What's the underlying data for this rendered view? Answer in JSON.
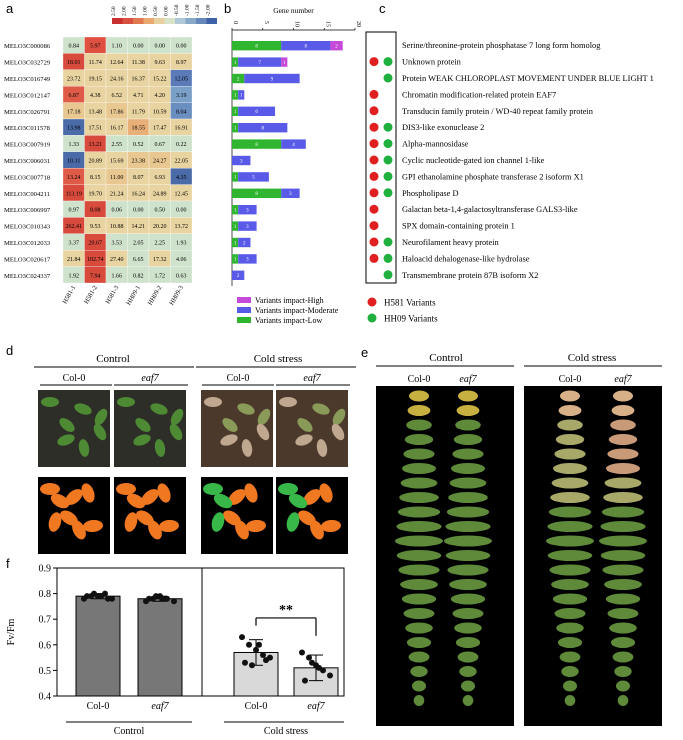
{
  "panels": {
    "a": "a",
    "b": "b",
    "c": "c",
    "d": "d",
    "e": "e",
    "f": "f"
  },
  "heatmap": {
    "scale_ticks": [
      "2.50",
      "2.00",
      "1.50",
      "1.00",
      "0.50",
      "0.00",
      "-0.50",
      "-1.00",
      "-1.50",
      "-2.00"
    ],
    "columns": [
      "H581-1",
      "H581-2",
      "H581-3",
      "HH09-1",
      "HH09-2",
      "HH09-3"
    ],
    "rows": [
      {
        "gene": "MELO3C000086",
        "values": [
          "0.84",
          "5.97",
          "1.10",
          "0.00",
          "0.00",
          "0.00"
        ],
        "colors": [
          "#cfe2cc",
          "#e05040",
          "#cfe2cc",
          "#cfe2cc",
          "#cfe2cc",
          "#cfe2cc"
        ]
      },
      {
        "gene": "MELO3C032729",
        "values": [
          "18.01",
          "11.74",
          "12.64",
          "11.38",
          "9.63",
          "8.97"
        ],
        "colors": [
          "#d84a3c",
          "#e8d4a0",
          "#e8d4a0",
          "#e8d4a0",
          "#e8d4a0",
          "#e8d4a0"
        ]
      },
      {
        "gene": "MELO3C016749",
        "values": [
          "23.72",
          "19.15",
          "24.16",
          "16.37",
          "15.22",
          "12.05"
        ],
        "colors": [
          "#e8d4a0",
          "#e8d4a0",
          "#e8d4a0",
          "#e8d4a0",
          "#e8d4a0",
          "#5a7ab8"
        ]
      },
      {
        "gene": "MELO3C012147",
        "values": [
          "6.87",
          "4.38",
          "6.52",
          "4.71",
          "4.20",
          "3.19"
        ],
        "colors": [
          "#e05a48",
          "#e8d4a0",
          "#e8d4a0",
          "#e8d4a0",
          "#e8d4a0",
          "#7aa0c8"
        ]
      },
      {
        "gene": "MELO3C026791",
        "values": [
          "17.18",
          "13.48",
          "17.86",
          "11.79",
          "10.59",
          "8.04"
        ],
        "colors": [
          "#e8c890",
          "#e8d4a0",
          "#e8c890",
          "#e8d4a0",
          "#e8d4a0",
          "#6a8ec0"
        ]
      },
      {
        "gene": "MELO3C011578",
        "values": [
          "13.98",
          "17.51",
          "16.17",
          "18.55",
          "17.47",
          "16.91"
        ],
        "colors": [
          "#4a6aa8",
          "#e8d4a0",
          "#e8d4a0",
          "#e8b078",
          "#e8d4a0",
          "#e8d4a0"
        ]
      },
      {
        "gene": "MELO3C007919",
        "values": [
          "1.33",
          "13.21",
          "2.55",
          "0.52",
          "0.67",
          "0.22"
        ],
        "colors": [
          "#cfe2cc",
          "#d84a3c",
          "#cfe2cc",
          "#cfe2cc",
          "#cfe2cc",
          "#cfe2cc"
        ]
      },
      {
        "gene": "MELO3C006031",
        "values": [
          "10.11",
          "20.89",
          "15.69",
          "23.38",
          "24.27",
          "22.05"
        ],
        "colors": [
          "#4a6aa8",
          "#e8d4a0",
          "#e8d4a0",
          "#e8c890",
          "#e8c890",
          "#e8d4a0"
        ]
      },
      {
        "gene": "MELO3C007718",
        "values": [
          "13.24",
          "8.15",
          "11.00",
          "8.07",
          "6.93",
          "4.35"
        ],
        "colors": [
          "#e05a48",
          "#e8d4a0",
          "#e8c890",
          "#e8d4a0",
          "#e8d4a0",
          "#4a6aa8"
        ]
      },
      {
        "gene": "MELO3C004211",
        "values": [
          "113.19",
          "19.70",
          "21.24",
          "16.24",
          "24.89",
          "12.45"
        ],
        "colors": [
          "#d84a3c",
          "#e8d4a0",
          "#e8d4a0",
          "#e8d4a0",
          "#e8d4a0",
          "#e8d4a0"
        ]
      },
      {
        "gene": "MELO3C006997",
        "values": [
          "0.97",
          "8.08",
          "0.06",
          "0.00",
          "0.50",
          "0.00"
        ],
        "colors": [
          "#cfe2cc",
          "#d84a3c",
          "#cfe2cc",
          "#cfe2cc",
          "#cfe2cc",
          "#cfe2cc"
        ]
      },
      {
        "gene": "MELO3C010343",
        "values": [
          "262.41",
          "9.53",
          "10.88",
          "14.21",
          "20.20",
          "13.72"
        ],
        "colors": [
          "#d84a3c",
          "#e8d4a0",
          "#e8d4a0",
          "#e8d4a0",
          "#e8d4a0",
          "#e8d4a0"
        ]
      },
      {
        "gene": "MELO3C012033",
        "values": [
          "3.37",
          "20.67",
          "3.53",
          "2.05",
          "2.25",
          "1.93"
        ],
        "colors": [
          "#cfe2cc",
          "#d84a3c",
          "#cfe2cc",
          "#cfe2cc",
          "#cfe2cc",
          "#cfe2cc"
        ]
      },
      {
        "gene": "MELO3C020617",
        "values": [
          "21.84",
          "102.74",
          "27.40",
          "6.65",
          "17.32",
          "4.06"
        ],
        "colors": [
          "#e8d4a0",
          "#d84a3c",
          "#e8d4a0",
          "#cfe2cc",
          "#e8d4a0",
          "#cfe2cc"
        ]
      },
      {
        "gene": "MELO3C024337",
        "values": [
          "1.92",
          "7.94",
          "1.66",
          "0.82",
          "1.72",
          "0.63"
        ],
        "colors": [
          "#cfe2cc",
          "#d84a3c",
          "#cfe2cc",
          "#cfe2cc",
          "#cfe2cc",
          "#cfe2cc"
        ]
      }
    ]
  },
  "chart_data": [
    {
      "type": "bar",
      "title": "",
      "xlabel": "Gene number",
      "xticks": [
        "0",
        "5",
        "10",
        "15",
        "20"
      ],
      "xlim": [
        0,
        20
      ],
      "orientation": "horizontal-stacked",
      "series": [
        {
          "name": "Variants impact-Low",
          "color": "#2fb52f",
          "values": [
            8,
            1,
            2,
            1,
            1,
            1,
            8,
            0,
            1,
            8,
            1,
            1,
            1,
            1,
            0
          ],
          "labels": [
            "8",
            "1",
            "2",
            "1",
            "1",
            "1",
            "8",
            "",
            "1",
            "8",
            "1",
            "1",
            "1",
            "1",
            ""
          ]
        },
        {
          "name": "Variants impact-Moderate",
          "color": "#5a5ae8",
          "values": [
            8,
            7,
            9,
            1,
            6,
            8,
            4,
            3,
            5,
            3,
            3,
            3,
            2,
            3,
            2
          ],
          "labels": [
            "8",
            "7",
            "9",
            "1",
            "6",
            "8",
            "4",
            "3",
            "5",
            "3",
            "3",
            "3",
            "2",
            "3",
            "2"
          ]
        },
        {
          "name": "Variants impact-High",
          "color": "#c44ad8",
          "values": [
            2,
            1,
            0,
            0,
            0,
            0,
            0,
            0,
            0,
            0,
            0,
            0,
            0,
            0,
            0
          ],
          "labels": [
            "2",
            "1",
            "",
            "",
            "",
            "",
            "",
            "",
            "",
            "",
            "",
            "",
            "",
            "",
            ""
          ]
        }
      ],
      "categories": [
        "MELO3C000086",
        "MELO3C032729",
        "MELO3C016749",
        "MELO3C012147",
        "MELO3C026791",
        "MELO3C011578",
        "MELO3C007919",
        "MELO3C006031",
        "MELO3C007718",
        "MELO3C004211",
        "MELO3C006997",
        "MELO3C010343",
        "MELO3C012033",
        "MELO3C020617",
        "MELO3C024337"
      ]
    },
    {
      "type": "bar",
      "title": "",
      "ylabel": "Fv/Fm",
      "yticks": [
        "0.4",
        "0.5",
        "0.6",
        "0.7",
        "0.8",
        "0.9"
      ],
      "ylim": [
        0.4,
        0.9
      ],
      "categories": [
        "Col-0",
        "eaf7",
        "Col-0",
        "eaf7"
      ],
      "groups": [
        "Control",
        "Cold stress"
      ],
      "values": [
        0.79,
        0.78,
        0.57,
        0.51
      ],
      "errors": [
        0.01,
        0.01,
        0.05,
        0.05
      ],
      "points": [
        [
          0.78,
          0.79,
          0.79,
          0.8,
          0.78,
          0.79,
          0.8,
          0.79,
          0.78
        ],
        [
          0.77,
          0.78,
          0.79,
          0.78,
          0.77,
          0.78,
          0.79,
          0.78
        ],
        [
          0.63,
          0.6,
          0.58,
          0.56,
          0.55,
          0.53,
          0.52,
          0.6,
          0.54
        ],
        [
          0.57,
          0.55,
          0.52,
          0.5,
          0.48,
          0.46,
          0.53,
          0.51
        ]
      ],
      "significance": "**",
      "bar_colors": [
        "#777777",
        "#777777",
        "#d9d9d9",
        "#d9d9d9"
      ]
    }
  ],
  "legend_b": [
    "Variants impact-High",
    "Variants impact-Moderate",
    "Variants impact-Low"
  ],
  "proteins": [
    {
      "name": "Serine/threonine-protein phosphatase 7 long form homolog",
      "h581": false,
      "hh09": false
    },
    {
      "name": "Unknown protein",
      "h581": true,
      "hh09": true
    },
    {
      "name": "Protein WEAK CHLOROPLAST MOVEMENT UNDER BLUE LIGHT 1",
      "h581": false,
      "hh09": true
    },
    {
      "name": "Chromatin modification-related protein EAF7",
      "h581": true,
      "hh09": false
    },
    {
      "name": "Transducin family protein / WD-40 repeat family protein",
      "h581": true,
      "hh09": false
    },
    {
      "name": "DIS3-like exonuclease 2",
      "h581": true,
      "hh09": true
    },
    {
      "name": "Alpha-mannosidase",
      "h581": true,
      "hh09": true
    },
    {
      "name": "Cyclic nucleotide-gated ion channel 1-like",
      "h581": true,
      "hh09": true
    },
    {
      "name": "GPI ethanolamine phosphate transferase 2 isoform X1",
      "h581": true,
      "hh09": true
    },
    {
      "name": "Phospholipase D",
      "h581": true,
      "hh09": true
    },
    {
      "name": "Galactan beta-1,4-galactosyltransferase GALS3-like",
      "h581": true,
      "hh09": false
    },
    {
      "name": "SPX domain-containing protein 1",
      "h581": true,
      "hh09": false
    },
    {
      "name": "Neurofilament heavy protein",
      "h581": true,
      "hh09": true
    },
    {
      "name": "Haloacid dehalogenase-like hydrolase",
      "h581": true,
      "hh09": true
    },
    {
      "name": "Transmembrane protein 87B isoform X2",
      "h581": false,
      "hh09": true
    }
  ],
  "legend_c": {
    "h581": "H581 Variants",
    "hh09": "HH09 Variants",
    "h581_color": "#e02020",
    "hh09_color": "#20b040"
  },
  "panel_d": {
    "control": "Control",
    "cold": "Cold stress",
    "col0": "Col-0",
    "eaf7": "eaf7"
  },
  "panel_e": {
    "control": "Control",
    "cold": "Cold stress",
    "col0": "Col-0",
    "eaf7": "eaf7"
  },
  "panel_f": {
    "control": "Control",
    "cold": "Cold stress",
    "col0": "Col-0",
    "eaf7": "eaf7"
  }
}
